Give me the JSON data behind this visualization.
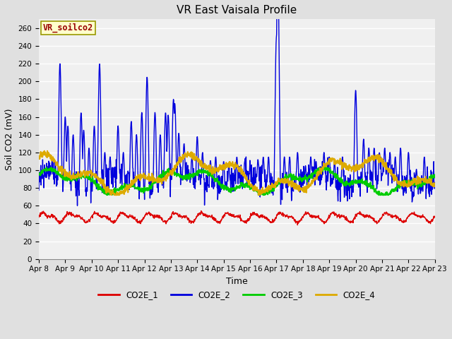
{
  "title": "VR East Vaisala Profile",
  "xlabel": "Time",
  "ylabel": "Soil CO2 (mV)",
  "annotation": "VR_soilco2",
  "ylim": [
    0,
    270
  ],
  "yticks": [
    0,
    20,
    40,
    60,
    80,
    100,
    120,
    140,
    160,
    180,
    200,
    220,
    240,
    260
  ],
  "colors": {
    "CO2E_1": "#dd0000",
    "CO2E_2": "#0000dd",
    "CO2E_3": "#00cc00",
    "CO2E_4": "#ddaa00"
  },
  "bg_color": "#e0e0e0",
  "plot_bg_color": "#f0f0f0",
  "grid_color": "#ffffff",
  "annotation_bg": "#ffffcc",
  "annotation_border": "#999900",
  "annotation_text_color": "#990000",
  "x_tick_labels": [
    "Apr 8",
    "Apr 9",
    "Apr 10",
    "Apr 11",
    "Apr 12",
    "Apr 13",
    "Apr 14",
    "Apr 15",
    "Apr 16",
    "Apr 17",
    "Apr 18",
    "Apr 19",
    "Apr 20",
    "Apr 21",
    "Apr 22",
    "Apr 23"
  ],
  "linewidth_thin": 1.0,
  "linewidth_thick": 1.5,
  "title_fontsize": 11,
  "label_fontsize": 9,
  "tick_fontsize": 7.5
}
